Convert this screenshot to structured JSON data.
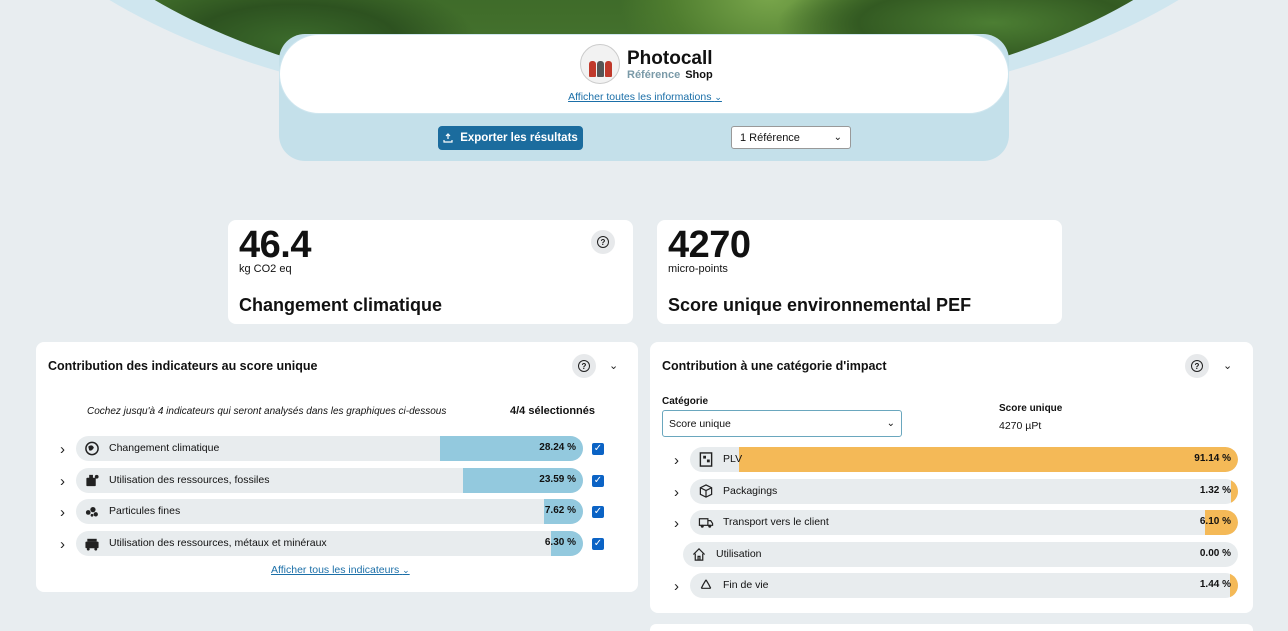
{
  "header": {
    "brand_name": "Photocall",
    "brand_ref": "Référence",
    "brand_shop": "Shop",
    "info_link": "Afficher toutes les informations",
    "export_label": "Exporter les résultats",
    "ref_select_value": "1 Référence"
  },
  "cards": [
    {
      "value": "46.4",
      "unit": "kg CO2 eq",
      "title": "Changement climatique"
    },
    {
      "value": "4270",
      "unit": "micro-points",
      "title": "Score unique environnemental PEF"
    }
  ],
  "left_panel": {
    "title": "Contribution des indicateurs au score unique",
    "hint": "Cochez jusqu'à 4 indicateurs qui seront analysés dans les graphiques ci-dessous",
    "selected": "4/4 sélectionnés",
    "rows": [
      {
        "label": "Changement climatique",
        "value": "28.24 %",
        "pct": 28.24,
        "icon": "climate-change-icon"
      },
      {
        "label": "Utilisation des ressources, fossiles",
        "value": "23.59 %",
        "pct": 23.59,
        "icon": "fossil-resources-icon"
      },
      {
        "label": "Particules fines",
        "value": "7.62 %",
        "pct": 7.62,
        "icon": "fine-particles-icon"
      },
      {
        "label": "Utilisation des ressources, métaux et minéraux",
        "value": "6.30 %",
        "pct": 6.3,
        "icon": "minerals-metals-icon"
      }
    ],
    "more_link": "Afficher tous les indicateurs",
    "bar_color": "#93c9de"
  },
  "right_panel": {
    "title": "Contribution à une catégorie d'impact",
    "category_label": "Catégorie",
    "category_value": "Score unique",
    "score_label": "Score unique",
    "score_value": "4270 µPt",
    "rows": [
      {
        "label": "PLV",
        "value": "91.14 %",
        "pct": 91.14,
        "icon": "plv-display-icon"
      },
      {
        "label": "Packagings",
        "value": "1.32 %",
        "pct": 1.32,
        "icon": "package-icon"
      },
      {
        "label": "Transport vers le client",
        "value": "6.10 %",
        "pct": 6.1,
        "icon": "truck-icon"
      },
      {
        "label": "Utilisation",
        "value": "0.00 %",
        "pct": 0.0,
        "icon": "home-icon"
      },
      {
        "label": "Fin de vie",
        "value": "1.44 %",
        "pct": 1.44,
        "icon": "recycle-icon"
      }
    ],
    "bar_color": "#f4b957"
  }
}
